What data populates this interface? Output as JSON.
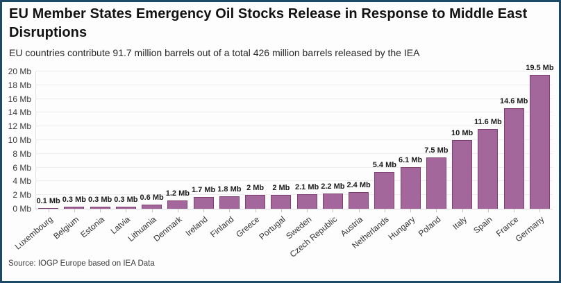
{
  "header": {
    "title": "EU Member States Emergency Oil Stocks Release in Response to Middle East Disruptions",
    "subtitle": "EU countries contribute 91.7 million barrels out of a total 426 million barrels released by the IEA"
  },
  "footer": {
    "source": "Source: IOGP Europe based on IEA Data"
  },
  "colors": {
    "bar_fill": "#a3679b",
    "bar_border": "#7d3f74",
    "frame_border": "#1c4a66",
    "gridline": "#eeecee",
    "axis_line": "#e3e1e4"
  },
  "chart_data": {
    "type": "bar",
    "title": "EU Member States Emergency Oil Stocks Release in Response to Middle East Disruptions",
    "subtitle": "EU countries contribute 91.7 million barrels out of a total 426 million barrels released by the IEA",
    "unit": "Mb",
    "categories": [
      "Luxembourg",
      "Belgium",
      "Estonia",
      "Latvia",
      "Lithuania",
      "Denmark",
      "Ireland",
      "Finland",
      "Greece",
      "Portugal",
      "Sweden",
      "Czech Republic",
      "Austria",
      "Netherlands",
      "Hungary",
      "Poland",
      "Italy",
      "Spain",
      "France",
      "Germany"
    ],
    "values": [
      0.1,
      0.3,
      0.3,
      0.3,
      0.6,
      1.2,
      1.7,
      1.8,
      2,
      2,
      2.1,
      2.2,
      2.4,
      5.4,
      6.1,
      7.5,
      10,
      11.6,
      14.6,
      19.5
    ],
    "value_labels": [
      "0.1 Mb",
      "0.3 Mb",
      "0.3 Mb",
      "0.3 Mb",
      "0.6 Mb",
      "1.2 Mb",
      "1.7 Mb",
      "1.8 Mb",
      "2 Mb",
      "2 Mb",
      "2.1 Mb",
      "2.2 Mb",
      "2.4 Mb",
      "5.4 Mb",
      "6.1 Mb",
      "7.5 Mb",
      "10 Mb",
      "11.6 Mb",
      "14.6 Mb",
      "19.5 Mb"
    ],
    "xlabel": "",
    "ylabel": "",
    "ylim": [
      0,
      20
    ],
    "ytick_step": 2,
    "ytick_suffix": " Mb",
    "grid": "horizontal",
    "legend": "none",
    "source": "Source: IOGP Europe based on IEA Data"
  }
}
